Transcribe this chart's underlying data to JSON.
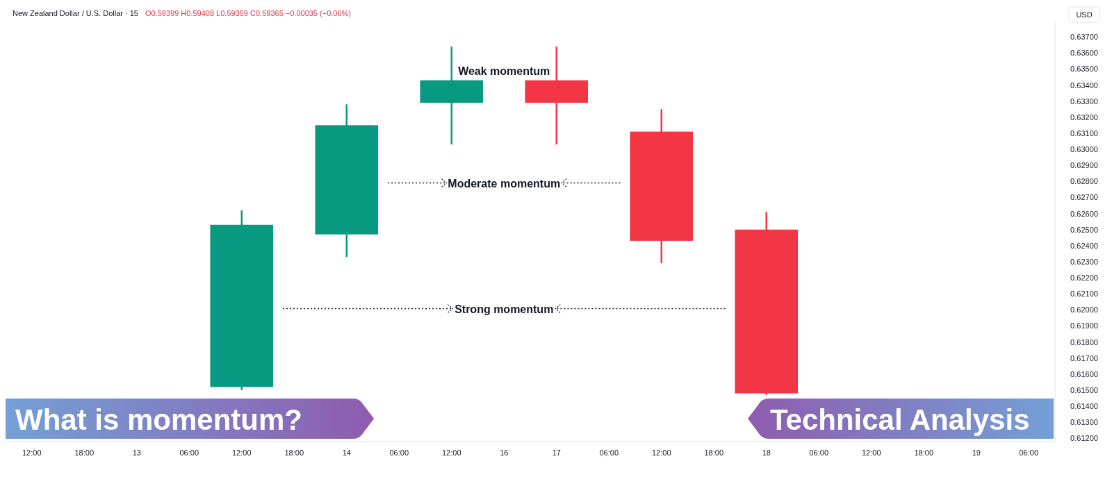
{
  "chart_data": {
    "type": "candlestick",
    "title": "New Zealand Dollar / U.S. Dollar · 15",
    "ylabel": "USD",
    "categories": [
      "12:00",
      "18:00",
      "13",
      "06:00",
      "12:00",
      "18:00",
      "14",
      "06:00",
      "12:00",
      "16",
      "17",
      "06:00",
      "12:00",
      "18:00",
      "18",
      "06:00",
      "12:00",
      "18:00",
      "19",
      "06:00"
    ],
    "ohlc": [
      null,
      null,
      null,
      null,
      [
        0.6152,
        0.6262,
        0.615,
        0.6253
      ],
      null,
      [
        0.6247,
        0.6328,
        0.6233,
        0.6315
      ],
      null,
      [
        0.6329,
        0.6364,
        0.6303,
        0.6343
      ],
      null,
      [
        0.6343,
        0.6364,
        0.6303,
        0.6329
      ],
      null,
      [
        0.6311,
        0.6325,
        0.6229,
        0.6243
      ],
      null,
      [
        0.625,
        0.6261,
        0.6147,
        0.6148
      ],
      null,
      null,
      null,
      null,
      null
    ],
    "colors": [
      null,
      null,
      null,
      null,
      "#089981",
      null,
      "#089981",
      null,
      "#089981",
      null,
      "#f23645",
      null,
      "#f23645",
      null,
      "#f23645",
      null,
      null,
      null,
      null,
      null
    ],
    "ylim": [
      0.6118,
      0.638
    ],
    "yticks": [
      {
        "value": 0.612,
        "label": "0.61200"
      },
      {
        "value": 0.613,
        "label": "0.61300"
      },
      {
        "value": 0.614,
        "label": "0.61400"
      },
      {
        "value": 0.615,
        "label": "0.61500"
      },
      {
        "value": 0.616,
        "label": "0.61600"
      },
      {
        "value": 0.617,
        "label": "0.61700"
      },
      {
        "value": 0.618,
        "label": "0.61800"
      },
      {
        "value": 0.619,
        "label": "0.61900"
      },
      {
        "value": 0.62,
        "label": "0.62000"
      },
      {
        "value": 0.621,
        "label": "0.62100"
      },
      {
        "value": 0.622,
        "label": "0.62200"
      },
      {
        "value": 0.623,
        "label": "0.62300"
      },
      {
        "value": 0.624,
        "label": "0.62400"
      },
      {
        "value": 0.625,
        "label": "0.62500"
      },
      {
        "value": 0.626,
        "label": "0.62600"
      },
      {
        "value": 0.627,
        "label": "0.62700"
      },
      {
        "value": 0.628,
        "label": "0.62800"
      },
      {
        "value": 0.629,
        "label": "0.62900"
      },
      {
        "value": 0.63,
        "label": "0.63000"
      },
      {
        "value": 0.631,
        "label": "0.63100"
      },
      {
        "value": 0.632,
        "label": "0.63200"
      },
      {
        "value": 0.633,
        "label": "0.63300"
      },
      {
        "value": 0.634,
        "label": "0.63400"
      },
      {
        "value": 0.635,
        "label": "0.63500"
      },
      {
        "value": 0.636,
        "label": "0.63600"
      },
      {
        "value": 0.637,
        "label": "0.63700"
      }
    ],
    "annotations": [
      "O0.59399 H0.59408 L0.59359 C0.59365 −0.00035 (−0.06%)",
      "What is momentum?",
      "Technical Analysis",
      "Weak momentum",
      "Moderate momentum",
      "Strong momentum"
    ]
  }
}
